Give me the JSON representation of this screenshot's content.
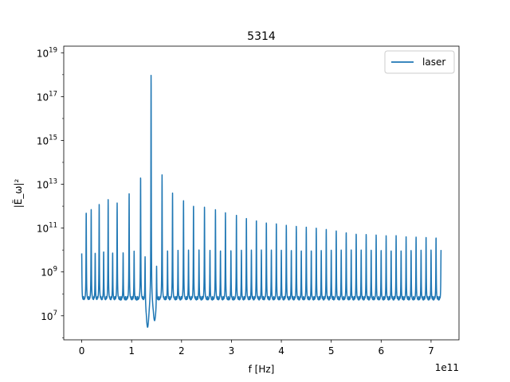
{
  "chart_data": {
    "type": "line",
    "title": "5314",
    "xlabel": "f [Hz]",
    "ylabel": "|Ẽ_ω|²",
    "x_offset_text": "1e11",
    "xscale": "linear",
    "yscale": "log",
    "xlim": [
      -36000000000.0,
      756000000000.0
    ],
    "ylim": [
      800000.0,
      2e+19
    ],
    "x_ticks": [
      {
        "value": 0,
        "label": "0"
      },
      {
        "value": 100000000000.0,
        "label": "1"
      },
      {
        "value": 200000000000.0,
        "label": "2"
      },
      {
        "value": 300000000000.0,
        "label": "3"
      },
      {
        "value": 400000000000.0,
        "label": "4"
      },
      {
        "value": 500000000000.0,
        "label": "5"
      },
      {
        "value": 600000000000.0,
        "label": "6"
      },
      {
        "value": 700000000000.0,
        "label": "7"
      }
    ],
    "y_ticks": [
      {
        "value": 10000000.0,
        "base": "10",
        "exp": "7"
      },
      {
        "value": 1000000000.0,
        "base": "10",
        "exp": "9"
      },
      {
        "value": 100000000000.0,
        "base": "10",
        "exp": "11"
      },
      {
        "value": 10000000000000.0,
        "base": "10",
        "exp": "13"
      },
      {
        "value": 1000000000000000.0,
        "base": "10",
        "exp": "15"
      },
      {
        "value": 1e+17,
        "base": "10",
        "exp": "17"
      },
      {
        "value": 1e+19,
        "base": "10",
        "exp": "19"
      }
    ],
    "grid": false,
    "legend": {
      "position": "top-right",
      "entries": [
        "laser"
      ]
    },
    "series": [
      {
        "name": "laser",
        "color": "#1f77b4",
        "x_range": [
          0,
          720000000000.0
        ],
        "floor": 50000000.0,
        "peak_spacing": 10000000000.0,
        "main_peak": {
          "x": 139000000000.0,
          "y": 3e+18
        },
        "big_peaks": [
          {
            "x": 9000000000.0,
            "y": 600000000000.0
          },
          {
            "x": 19000000000.0,
            "y": 700000000000.0
          },
          {
            "x": 35000000000.0,
            "y": 1200000000000.0
          },
          {
            "x": 53000000000.0,
            "y": 2000000000000.0
          },
          {
            "x": 71000000000.0,
            "y": 1400000000000.0
          },
          {
            "x": 95000000000.0,
            "y": 4000000000000.0
          },
          {
            "x": 118000000000.0,
            "y": 25000000000000.0
          },
          {
            "x": 161000000000.0,
            "y": 27000000000000.0
          },
          {
            "x": 182000000000.0,
            "y": 4000000000000.0
          },
          {
            "x": 204000000000.0,
            "y": 2000000000000.0
          },
          {
            "x": 224000000000.0,
            "y": 1200000000000.0
          },
          {
            "x": 246000000000.0,
            "y": 1000000000000.0
          },
          {
            "x": 268000000000.0,
            "y": 700000000000.0
          },
          {
            "x": 288000000000.0,
            "y": 500000000000.0
          },
          {
            "x": 310000000000.0,
            "y": 400000000000.0
          },
          {
            "x": 330000000000.0,
            "y": 300000000000.0
          },
          {
            "x": 350000000000.0,
            "y": 250000000000.0
          },
          {
            "x": 370000000000.0,
            "y": 200000000000.0
          },
          {
            "x": 390000000000.0,
            "y": 170000000000.0
          },
          {
            "x": 410000000000.0,
            "y": 140000000000.0
          },
          {
            "x": 430000000000.0,
            "y": 120000000000.0
          },
          {
            "x": 450000000000.0,
            "y": 110000000000.0
          },
          {
            "x": 470000000000.0,
            "y": 100000000000.0
          },
          {
            "x": 490000000000.0,
            "y": 90000000000.0
          },
          {
            "x": 510000000000.0,
            "y": 80000000000.0
          },
          {
            "x": 530000000000.0,
            "y": 70000000000.0
          },
          {
            "x": 550000000000.0,
            "y": 60000000000.0
          },
          {
            "x": 570000000000.0,
            "y": 55000000000.0
          },
          {
            "x": 590000000000.0,
            "y": 50000000000.0
          },
          {
            "x": 610000000000.0,
            "y": 45000000000.0
          },
          {
            "x": 630000000000.0,
            "y": 45000000000.0
          },
          {
            "x": 650000000000.0,
            "y": 40000000000.0
          },
          {
            "x": 670000000000.0,
            "y": 40000000000.0
          },
          {
            "x": 690000000000.0,
            "y": 40000000000.0
          },
          {
            "x": 710000000000.0,
            "y": 40000000000.0
          }
        ],
        "small_peaks": [
          {
            "x": 0.0,
            "y": 7000000000.0
          },
          {
            "x": 27000000000.0,
            "y": 8000000000.0
          },
          {
            "x": 44000000000.0,
            "y": 9000000000.0
          },
          {
            "x": 62000000000.0,
            "y": 8000000000.0
          },
          {
            "x": 83000000000.0,
            "y": 8000000000.0
          },
          {
            "x": 105000000000.0,
            "y": 9000000000.0
          },
          {
            "x": 127000000000.0,
            "y": 15000000000.0
          },
          {
            "x": 150000000000.0,
            "y": 15000000000.0
          },
          {
            "x": 172000000000.0,
            "y": 10000000000.0
          },
          {
            "x": 193000000000.0,
            "y": 10000000000.0
          },
          {
            "x": 214000000000.0,
            "y": 10000000000.0
          },
          {
            "x": 235000000000.0,
            "y": 10000000000.0
          },
          {
            "x": 257000000000.0,
            "y": 10000000000.0
          },
          {
            "x": 278000000000.0,
            "y": 10000000000.0
          },
          {
            "x": 299000000000.0,
            "y": 10000000000.0
          },
          {
            "x": 320000000000.0,
            "y": 10000000000.0
          },
          {
            "x": 340000000000.0,
            "y": 10000000000.0
          },
          {
            "x": 360000000000.0,
            "y": 10000000000.0
          },
          {
            "x": 380000000000.0,
            "y": 10000000000.0
          },
          {
            "x": 400000000000.0,
            "y": 10000000000.0
          },
          {
            "x": 420000000000.0,
            "y": 10000000000.0
          },
          {
            "x": 440000000000.0,
            "y": 10000000000.0
          },
          {
            "x": 460000000000.0,
            "y": 10000000000.0
          },
          {
            "x": 480000000000.0,
            "y": 10000000000.0
          },
          {
            "x": 500000000000.0,
            "y": 10000000000.0
          },
          {
            "x": 520000000000.0,
            "y": 10000000000.0
          },
          {
            "x": 540000000000.0,
            "y": 10000000000.0
          },
          {
            "x": 560000000000.0,
            "y": 10000000000.0
          },
          {
            "x": 580000000000.0,
            "y": 10000000000.0
          },
          {
            "x": 600000000000.0,
            "y": 10000000000.0
          },
          {
            "x": 620000000000.0,
            "y": 10000000000.0
          },
          {
            "x": 640000000000.0,
            "y": 10000000000.0
          },
          {
            "x": 660000000000.0,
            "y": 10000000000.0
          },
          {
            "x": 680000000000.0,
            "y": 10000000000.0
          },
          {
            "x": 700000000000.0,
            "y": 10000000000.0
          },
          {
            "x": 720000000000.0,
            "y": 10000000000.0
          }
        ],
        "dips": [
          {
            "x": 132000000000.0,
            "y": 3000000.0
          },
          {
            "x": 146000000000.0,
            "y": 6000000.0
          }
        ]
      }
    ]
  }
}
